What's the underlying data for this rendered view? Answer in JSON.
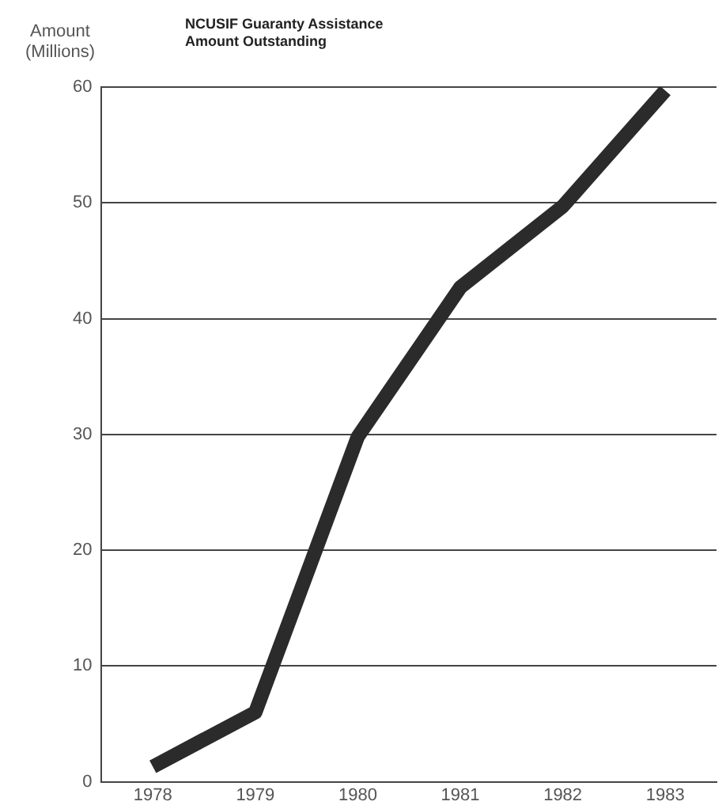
{
  "chart_data": {
    "type": "line",
    "title": "NCUSIF Guaranty Assistance Amount Outstanding",
    "ylabel": "Amount (Millions)",
    "categories": [
      "1978",
      "1979",
      "1980",
      "1981",
      "1982",
      "1983"
    ],
    "series": [
      {
        "color": "#2b2b2b",
        "values": [
          1.3,
          6,
          29.8,
          42.7,
          49.7,
          59.7
        ]
      }
    ],
    "ylim": [
      0,
      60
    ],
    "yticks": [
      0,
      10,
      20,
      30,
      40,
      50,
      60
    ],
    "grid": "y",
    "legend": false,
    "marker": "none",
    "line_style": "solid"
  }
}
